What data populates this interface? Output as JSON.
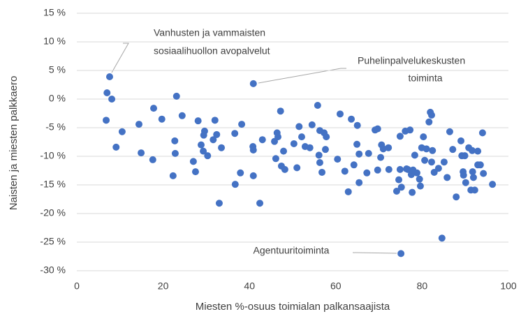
{
  "chart_data": {
    "type": "scatter",
    "xlabel": "Miesten %-osuus toimialan palkansaajista",
    "ylabel": "Naisten ja miesten palkkaero",
    "color": "#4472c4",
    "grid": true,
    "xlim": [
      0,
      100
    ],
    "xticks": [
      0,
      20,
      40,
      60,
      80,
      100
    ],
    "ylim": [
      -30,
      15
    ],
    "yticks": [
      {
        "value": -30,
        "label": "-30 %"
      },
      {
        "value": -25,
        "label": "-25 %"
      },
      {
        "value": -20,
        "label": "-20 %"
      },
      {
        "value": -15,
        "label": "-15 %"
      },
      {
        "value": -10,
        "label": "-10 %"
      },
      {
        "value": -5,
        "label": "-5 %"
      },
      {
        "value": 0,
        "label": "0 %"
      },
      {
        "value": 5,
        "label": "5 %"
      },
      {
        "value": 10,
        "label": "10 %"
      },
      {
        "value": 15,
        "label": "15 %"
      }
    ],
    "annotations": [
      {
        "lines": [
          "Vanhusten ja vammaisten",
          "sosiaalihuollon avopalvelut"
        ]
      },
      {
        "lines": [
          "Puhelinpalvelukeskusten",
          "toiminta"
        ]
      },
      {
        "lines": [
          "Agentuuritoiminta"
        ]
      }
    ],
    "x": [
      7.6,
      7,
      8.1,
      6.8,
      9.1,
      10.5,
      14.4,
      14.9,
      17.8,
      17.6,
      19.7,
      23.1,
      24.4,
      22.7,
      22.8,
      22.3,
      27,
      27.5,
      28.1,
      28.8,
      29.3,
      29.6,
      29.4,
      30.3,
      31.6,
      32,
      32.4,
      33.5,
      33,
      36.6,
      38.2,
      37.9,
      36.7,
      40.9,
      40.8,
      40.9,
      40.9,
      42.4,
      43,
      45.8,
      46.1,
      46.4,
      46.6,
      47.2,
      47.4,
      47.9,
      48.2,
      50.3,
      51,
      51.5,
      52.1,
      52.9,
      54,
      54.5,
      55.8,
      56.3,
      56.1,
      56.3,
      56.8,
      57.3,
      57.8,
      57.6,
      60.4,
      61,
      62.1,
      62.9,
      63.6,
      64.2,
      64.9,
      65,
      65.4,
      65.4,
      67.2,
      67.6,
      69.1,
      69.7,
      69.7,
      70.4,
      70.6,
      71,
      72.2,
      72.3,
      74.1,
      74.6,
      74.9,
      75.2,
      74.9,
      75.1,
      76.1,
      76.4,
      76.7,
      77.2,
      77.7,
      77.5,
      77.9,
      78.3,
      78.8,
      79.4,
      79.6,
      79.9,
      80.3,
      80.6,
      81,
      81.6,
      81.9,
      82.2,
      82.2,
      82.4,
      82.8,
      83.8,
      84.6,
      85.1,
      85.8,
      86.4,
      87.1,
      87.9,
      89,
      89.2,
      89.5,
      89.6,
      89.9,
      90.1,
      90.8,
      91.3,
      91.6,
      91.9,
      92.2,
      92.9,
      92.9,
      93.5,
      94,
      94.2,
      96.3,
      91.7
    ],
    "y": [
      3.9,
      1.1,
      0,
      -3.7,
      -8.4,
      -5.7,
      -4.4,
      -9.4,
      -1.6,
      -10.6,
      -3.5,
      0.5,
      -2.9,
      -7.3,
      -9.5,
      -13.4,
      -10.9,
      -12.7,
      -3.8,
      -8,
      -9.1,
      -5.6,
      -6.3,
      -9.9,
      -7.1,
      -3.7,
      -6.2,
      -8.5,
      -18.2,
      -6,
      -4.4,
      -12.9,
      -14.9,
      2.7,
      -8.3,
      -8.9,
      -13.4,
      -18.2,
      -7.1,
      -7.4,
      -10.4,
      -5.9,
      -6.6,
      -2.1,
      -11.7,
      -9.1,
      -12.3,
      -7.8,
      -12,
      -4.8,
      -6.6,
      -8.3,
      -8.5,
      -4.5,
      -1.1,
      -5.5,
      -9.8,
      -11.1,
      -12.8,
      -5.9,
      -6.6,
      -8.8,
      -10.5,
      -2.6,
      -12.6,
      -16.2,
      -3.5,
      -11.5,
      -7.9,
      -4.6,
      -9.6,
      -14.6,
      -12.9,
      -9.5,
      -5.4,
      -5.2,
      -12.4,
      -10.2,
      -8,
      -8.7,
      -8.5,
      -12.3,
      -16.1,
      -14.1,
      -6.5,
      -15.4,
      -12.3,
      -27,
      -5.6,
      -12.2,
      -12.3,
      -5.4,
      -16.3,
      -13.2,
      -12.4,
      -9.8,
      -12.9,
      -14,
      -15.2,
      -8.5,
      -6.6,
      -10.7,
      -8.7,
      -4,
      -2.3,
      -2.8,
      -11,
      -9,
      -12.8,
      -12.1,
      -24.3,
      -11,
      -13.7,
      -5.7,
      -8.8,
      -17.1,
      -7.3,
      -9.9,
      -12.7,
      -13.3,
      -9.9,
      -14.6,
      -8.5,
      -15.9,
      -9,
      -13.7,
      -15.9,
      -11.5,
      -9.1,
      -11.5,
      -5.9,
      -13,
      -14.9,
      -12.7
    ]
  }
}
